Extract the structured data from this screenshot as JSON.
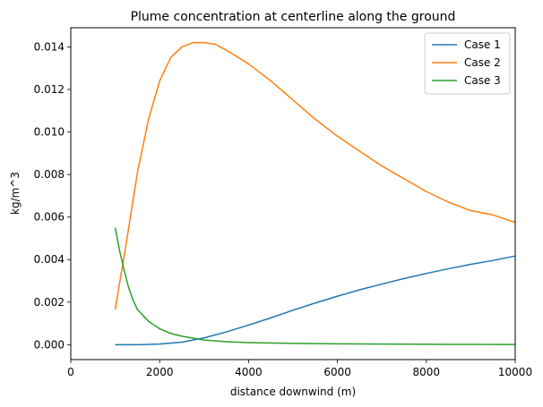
{
  "chart_data": {
    "type": "line",
    "title": "Plume concentration at centerline along the ground",
    "xlabel": "distance downwind (m)",
    "ylabel": "kg/m^3",
    "xlim": [
      0,
      10000
    ],
    "ylim": [
      -0.0007,
      0.0149
    ],
    "xticks": [
      0,
      2000,
      4000,
      6000,
      8000,
      10000
    ],
    "xtick_labels": [
      "0",
      "2000",
      "4000",
      "6000",
      "8000",
      "10000"
    ],
    "yticks": [
      0.0,
      0.002,
      0.004,
      0.006,
      0.008,
      0.01,
      0.012,
      0.014
    ],
    "ytick_labels": [
      "0.000",
      "0.002",
      "0.004",
      "0.006",
      "0.008",
      "0.010",
      "0.012",
      "0.014"
    ],
    "grid": false,
    "legend_position": "top-right",
    "series": [
      {
        "name": "Case 1",
        "color": "#1f77b4",
        "x": [
          1000,
          1500,
          2000,
          2500,
          3000,
          3500,
          4000,
          4500,
          5000,
          5500,
          6000,
          6500,
          7000,
          7500,
          8000,
          8500,
          9000,
          9500,
          10000
        ],
        "y": [
          0.0,
          0.0,
          3e-05,
          0.00012,
          0.00032,
          0.0006,
          0.00092,
          0.00126,
          0.00162,
          0.00196,
          0.00228,
          0.00258,
          0.00285,
          0.00311,
          0.00335,
          0.00357,
          0.00378,
          0.00396,
          0.00417
        ]
      },
      {
        "name": "Case 2",
        "color": "#ff7f0e",
        "x": [
          1000,
          1250,
          1500,
          1750,
          2000,
          2250,
          2500,
          2750,
          3000,
          3250,
          3500,
          4000,
          4500,
          5000,
          5500,
          6000,
          6500,
          7000,
          7500,
          8000,
          8500,
          9000,
          9500,
          10000
        ],
        "y": [
          0.00165,
          0.0048,
          0.0081,
          0.0106,
          0.0124,
          0.0135,
          0.014,
          0.0142,
          0.0142,
          0.01412,
          0.01385,
          0.0132,
          0.0124,
          0.0115,
          0.0106,
          0.0098,
          0.0091,
          0.0084,
          0.0078,
          0.0072,
          0.0067,
          0.0063,
          0.0061,
          0.00575
        ]
      },
      {
        "name": "Case 3",
        "color": "#2ca02c",
        "x": [
          1000,
          1100,
          1200,
          1300,
          1400,
          1500,
          1750,
          2000,
          2250,
          2500,
          3000,
          3500,
          4000,
          5000,
          6000,
          7000,
          8000,
          9000,
          10000
        ],
        "y": [
          0.0055,
          0.0044,
          0.0035,
          0.0027,
          0.0021,
          0.00165,
          0.0011,
          0.00075,
          0.00053,
          0.0004,
          0.00022,
          0.00014,
          0.0001,
          6e-05,
          4e-05,
          3e-05,
          2e-05,
          1.5e-05,
          1e-05
        ]
      }
    ]
  }
}
